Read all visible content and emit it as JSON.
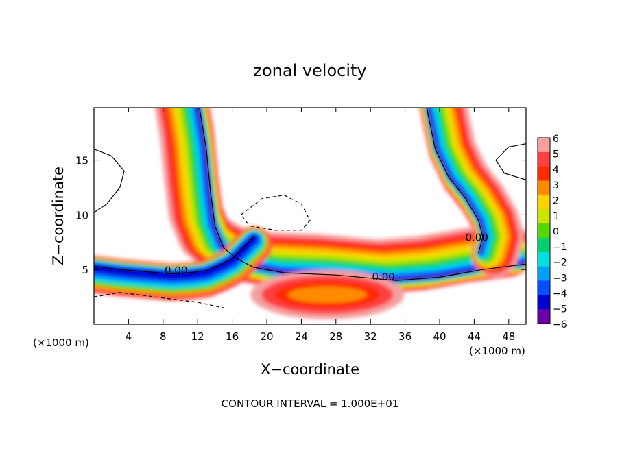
{
  "chart_data": {
    "type": "heatmap",
    "title": "zonal velocity",
    "xlabel": "X−coordinate",
    "ylabel": "Z−coordinate",
    "x_unit_left": "(×1000 m)",
    "x_unit_right": "(×1000 m)",
    "footer": "CONTOUR INTERVAL = 1.000E+01",
    "xlim": [
      0,
      50
    ],
    "ylim": [
      0,
      19.8
    ],
    "x_ticks": [
      {
        "value": 4,
        "label": "4"
      },
      {
        "value": 8,
        "label": "8"
      },
      {
        "value": 12,
        "label": "12"
      },
      {
        "value": 16,
        "label": "16"
      },
      {
        "value": 20,
        "label": "20"
      },
      {
        "value": 24,
        "label": "24"
      },
      {
        "value": 28,
        "label": "28"
      },
      {
        "value": 32,
        "label": "32"
      },
      {
        "value": 36,
        "label": "36"
      },
      {
        "value": 40,
        "label": "40"
      },
      {
        "value": 44,
        "label": "44"
      },
      {
        "value": 48,
        "label": "48"
      }
    ],
    "y_ticks": [
      {
        "value": 5,
        "label": "5"
      },
      {
        "value": 10,
        "label": "10"
      },
      {
        "value": 15,
        "label": "15"
      }
    ],
    "contour_labels": [
      {
        "text": "0.00",
        "x": 9.5,
        "z": 4.6
      },
      {
        "text": "0.00",
        "x": 33.5,
        "z": 4.0
      },
      {
        "text": "0.00",
        "x": 44.3,
        "z": 7.6
      }
    ],
    "colorbar": {
      "levels": [
        6,
        5,
        4,
        3,
        2,
        1,
        0,
        -1,
        -2,
        -3,
        -4,
        -5,
        -6
      ],
      "labels": [
        "6",
        "5",
        "4",
        "3",
        "2",
        "1",
        "0",
        "−1",
        "−2",
        "−3",
        "−4",
        "−5",
        "−6"
      ],
      "colors": [
        "#f4a0a0",
        "#ff4040",
        "#ff2a00",
        "#ff8c00",
        "#ffd200",
        "#c8e600",
        "#55d800",
        "#00d070",
        "#00e0e0",
        "#00a0ff",
        "#0050ff",
        "#0000d0",
        "#6a00a8"
      ]
    },
    "bands": [
      {
        "name": "left-updraft",
        "x": [
          12.2,
          13.0,
          13.5,
          14.0,
          15.0,
          16.5,
          18.5,
          22.0,
          28.0,
          35.0,
          40.0,
          45.0,
          50.0
        ],
        "z": [
          19.8,
          16.0,
          12.0,
          9.0,
          7.0,
          6.0,
          5.2,
          4.7,
          4.5,
          4.0,
          4.3,
          5.0,
          5.5
        ]
      },
      {
        "name": "right-updraft",
        "x": [
          38.5,
          39.5,
          41.0,
          43.0,
          44.5,
          45.0,
          44.5
        ],
        "z": [
          19.8,
          16.0,
          13.5,
          11.5,
          9.5,
          8.0,
          6.5
        ]
      },
      {
        "name": "surface-jet",
        "x": [
          0,
          3,
          6,
          9,
          11,
          13,
          14.5,
          16,
          18.5
        ],
        "z": [
          5.3,
          5.0,
          4.8,
          4.6,
          4.7,
          4.9,
          5.4,
          6.0,
          8.0
        ]
      }
    ]
  }
}
